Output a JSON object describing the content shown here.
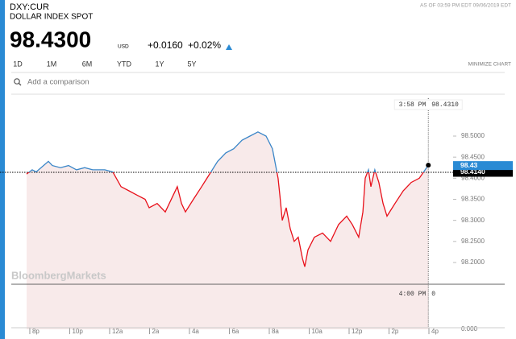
{
  "header": {
    "symbol": "DXY:CUR",
    "name": "DOLLAR INDEX SPOT",
    "as_of": "AS OF 03:59 PM EDT 09/06/2019 EDT",
    "price": "98.4300",
    "currency": "USD",
    "change": "+0.0160",
    "change_pct": "+0.02%",
    "tabs": [
      "1D",
      "1M",
      "6M",
      "YTD",
      "1Y",
      "5Y"
    ],
    "minimize": "MINIMIZE CHART",
    "comparison_placeholder": "Add a comparison"
  },
  "chart_data": {
    "type": "line",
    "watermark": "BloombergMarkets",
    "above_color": "#3a86c8",
    "below_color": "#e8101a",
    "area_color": "#f8eaea",
    "x": [
      -0.16,
      0.12,
      0.32,
      0.93,
      1.13,
      1.54,
      1.94,
      2.34,
      2.75,
      3.15,
      3.76,
      4.16,
      4.57,
      4.97,
      5.37,
      5.78,
      5.98,
      6.38,
      6.79,
      7.19,
      7.39,
      7.6,
      7.8,
      8.2,
      8.61,
      9.01,
      9.41,
      9.82,
      10.22,
      10.63,
      11.03,
      11.43,
      11.84,
      12.16,
      12.32,
      12.44,
      12.53,
      12.65,
      12.85,
      13.05,
      13.25,
      13.45,
      13.66,
      13.78,
      13.94,
      14.26,
      14.67,
      15.07,
      15.47,
      15.88,
      16.16,
      16.48,
      16.69,
      16.81,
      16.97,
      17.09,
      17.29,
      17.49,
      17.7,
      17.9,
      18.3,
      18.71,
      19.11,
      19.52,
      19.97
    ],
    "values": [
      98.41,
      98.42,
      98.415,
      98.44,
      98.43,
      98.425,
      98.43,
      98.42,
      98.425,
      98.42,
      98.42,
      98.415,
      98.38,
      98.37,
      98.36,
      98.35,
      98.33,
      98.34,
      98.32,
      98.36,
      98.38,
      98.34,
      98.32,
      98.35,
      98.38,
      98.41,
      98.44,
      98.46,
      98.47,
      98.49,
      98.5,
      98.51,
      98.5,
      98.47,
      98.43,
      98.4,
      98.36,
      98.3,
      98.33,
      98.28,
      98.25,
      98.26,
      98.21,
      98.19,
      98.23,
      98.26,
      98.27,
      98.25,
      98.29,
      98.31,
      98.29,
      98.26,
      98.32,
      98.4,
      98.42,
      98.38,
      98.42,
      98.39,
      98.34,
      98.31,
      98.34,
      98.37,
      98.39,
      98.4,
      98.431
    ],
    "xlim": [
      -0.16,
      20
    ],
    "xticks": [
      {
        "value": 0,
        "label": "8p"
      },
      {
        "value": 2,
        "label": "10p"
      },
      {
        "value": 4,
        "label": "12a"
      },
      {
        "value": 6,
        "label": "2a"
      },
      {
        "value": 8,
        "label": "4a"
      },
      {
        "value": 10,
        "label": "6a"
      },
      {
        "value": 12,
        "label": "8a"
      },
      {
        "value": 14,
        "label": "10a"
      },
      {
        "value": 16,
        "label": "12p"
      },
      {
        "value": 18,
        "label": "2p"
      },
      {
        "value": 20,
        "label": "4p"
      }
    ],
    "ylim": [
      98.0414,
      98.5936
    ],
    "yticks": [
      {
        "value": 98.2,
        "label": "98.2000"
      },
      {
        "value": 98.25,
        "label": "98.2500"
      },
      {
        "value": 98.3,
        "label": "98.3000"
      },
      {
        "value": 98.35,
        "label": "98.3500"
      },
      {
        "value": 98.4,
        "label": "98.4000"
      },
      {
        "value": 98.45,
        "label": "98.4500"
      },
      {
        "value": 98.5,
        "label": "98.5000"
      }
    ],
    "lower_axis_label": "0.000",
    "reference_line": {
      "value": 98.414,
      "label": "98.4140"
    },
    "last_label": {
      "value": 98.43,
      "label": "98.43"
    },
    "crosshair_top": {
      "time": "3:58 PM",
      "value": "98.4310"
    },
    "crosshair_bottom": {
      "time": "4:00 PM",
      "value": "0"
    }
  }
}
